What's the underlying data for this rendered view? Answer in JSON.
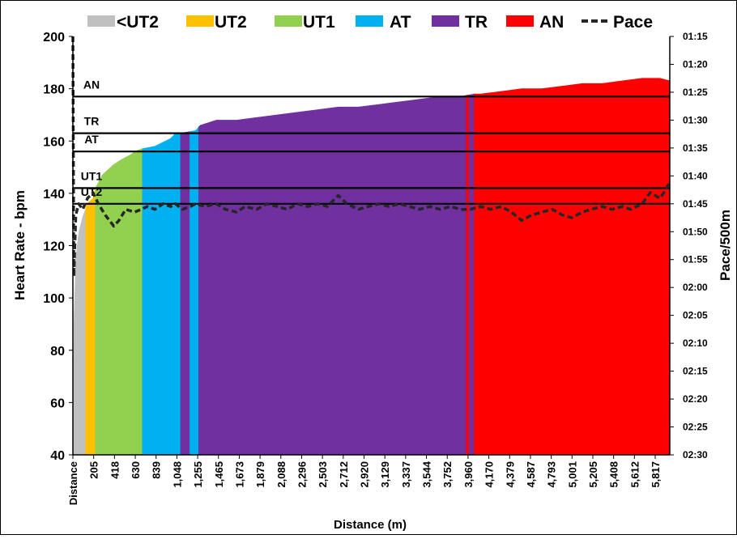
{
  "chart_data": {
    "type": "area",
    "xlabel": "Distance (m)",
    "ylabel": "Heart Rate - bpm",
    "y2label": "Pace/500m",
    "ylim": [
      40,
      200
    ],
    "y_ticks": [
      40,
      60,
      80,
      100,
      120,
      140,
      160,
      180,
      200
    ],
    "x_range": [
      0,
      6100
    ],
    "x_ticks": [
      "Distance",
      "205",
      "418",
      "630",
      "839",
      "1,048",
      "1,255",
      "1,465",
      "1,673",
      "1,879",
      "2,088",
      "2,296",
      "2,503",
      "2,712",
      "2,920",
      "3,129",
      "3,337",
      "3,544",
      "3,752",
      "3,960",
      "4,170",
      "4,379",
      "4,587",
      "4,793",
      "5,001",
      "5,205",
      "5,408",
      "5,612",
      "5,817"
    ],
    "y2_ticks": [
      "01:15",
      "01:20",
      "01:25",
      "01:30",
      "01:35",
      "01:40",
      "01:45",
      "01:50",
      "01:55",
      "02:00",
      "02:05",
      "02:10",
      "02:15",
      "02:20",
      "02:25",
      "02:30"
    ],
    "legend_position": "top",
    "legend": [
      {
        "label": "<UT2",
        "color": "#c0c0c0",
        "kind": "box"
      },
      {
        "label": "UT2",
        "color": "#ffc000",
        "kind": "box"
      },
      {
        "label": "UT1",
        "color": "#92d050",
        "kind": "box"
      },
      {
        "label": "AT",
        "color": "#00b0f0",
        "kind": "box"
      },
      {
        "label": "TR",
        "color": "#7030a0",
        "kind": "box"
      },
      {
        "label": "AN",
        "color": "#ff0000",
        "kind": "box"
      },
      {
        "label": "Pace",
        "color": "#262626",
        "kind": "dash"
      }
    ],
    "zone_lines": [
      {
        "label": "AN",
        "hr": 177
      },
      {
        "label": "TR",
        "hr": 163
      },
      {
        "label": "AT",
        "hr": 156
      },
      {
        "label": "UT1",
        "hr": 142
      },
      {
        "label": "UT2",
        "hr": 136
      }
    ],
    "heart_rate": {
      "x": [
        0,
        10,
        30,
        60,
        100,
        130,
        140,
        205,
        230,
        300,
        418,
        500,
        600,
        630,
        700,
        839,
        1000,
        1048,
        1100,
        1255,
        1300,
        1465,
        1673,
        1879,
        2088,
        2296,
        2503,
        2712,
        2920,
        3129,
        3337,
        3544,
        3752,
        3960,
        4100,
        4170,
        4379,
        4587,
        4793,
        5001,
        5205,
        5408,
        5612,
        5817,
        6000,
        6100
      ],
      "y": [
        40,
        90,
        115,
        125,
        131,
        134,
        136,
        138,
        142,
        147,
        151,
        153,
        155,
        156,
        157,
        158,
        161,
        163,
        163,
        164,
        166,
        168,
        168,
        169,
        170,
        171,
        172,
        173,
        173,
        174,
        175,
        176,
        177,
        177,
        178,
        178,
        179,
        180,
        180,
        181,
        182,
        182,
        183,
        184,
        184,
        183
      ],
      "zone_segments": [
        {
          "zone": "<UT2",
          "x0": 0,
          "x1": 130,
          "color": "#c0c0c0"
        },
        {
          "zone": "UT2",
          "x0": 130,
          "x1": 230,
          "color": "#ffc000"
        },
        {
          "zone": "UT1",
          "x0": 230,
          "x1": 710,
          "color": "#92d050"
        },
        {
          "zone": "AT",
          "x0": 710,
          "x1": 1100,
          "color": "#00b0f0"
        },
        {
          "zone": "TR",
          "x0": 1100,
          "x1": 1195,
          "color": "#7030a0"
        },
        {
          "zone": "AT",
          "x0": 1195,
          "x1": 1285,
          "color": "#00b0f0"
        },
        {
          "zone": "TR",
          "x0": 1285,
          "x1": 4020,
          "color": "#7030a0"
        },
        {
          "zone": "AN",
          "x0": 4020,
          "x1": 4050,
          "color": "#ff0000"
        },
        {
          "zone": "TR",
          "x0": 4050,
          "x1": 4100,
          "color": "#7030a0"
        },
        {
          "zone": "AN",
          "x0": 4100,
          "x1": 6100,
          "color": "#ff0000"
        }
      ]
    },
    "pace": {
      "name": "Pace",
      "unit": "min:sec per 500m",
      "x": [
        0,
        10,
        30,
        60,
        100,
        150,
        205,
        260,
        330,
        418,
        470,
        540,
        630,
        700,
        760,
        839,
        920,
        1000,
        1048,
        1120,
        1200,
        1255,
        1350,
        1465,
        1560,
        1673,
        1760,
        1879,
        1980,
        2088,
        2190,
        2296,
        2400,
        2503,
        2600,
        2712,
        2800,
        2920,
        3020,
        3129,
        3230,
        3337,
        3440,
        3544,
        3650,
        3752,
        3860,
        3960,
        4060,
        4170,
        4270,
        4379,
        4480,
        4587,
        4690,
        4793,
        4900,
        5001,
        5100,
        5205,
        5300,
        5408,
        5510,
        5612,
        5700,
        5817,
        5900,
        6000,
        6060,
        6100
      ],
      "y_seconds": [
        75,
        118,
        107,
        105,
        106,
        104,
        103,
        105,
        107,
        109,
        108,
        106,
        106.5,
        106,
        105.5,
        106,
        105,
        105.5,
        105,
        106,
        105.5,
        105,
        105.5,
        105,
        106,
        106.5,
        105.5,
        106,
        105,
        105.5,
        106,
        105,
        105.5,
        105,
        105.5,
        103.5,
        105,
        106,
        105.5,
        105,
        105.5,
        105,
        105.5,
        106,
        105.5,
        106,
        105.5,
        106,
        106,
        105.5,
        106,
        105.5,
        106.5,
        108,
        107,
        106.5,
        106,
        107,
        107.5,
        106.5,
        106,
        105.5,
        106,
        105.5,
        106,
        105,
        103,
        104,
        102.5,
        101
      ]
    }
  }
}
